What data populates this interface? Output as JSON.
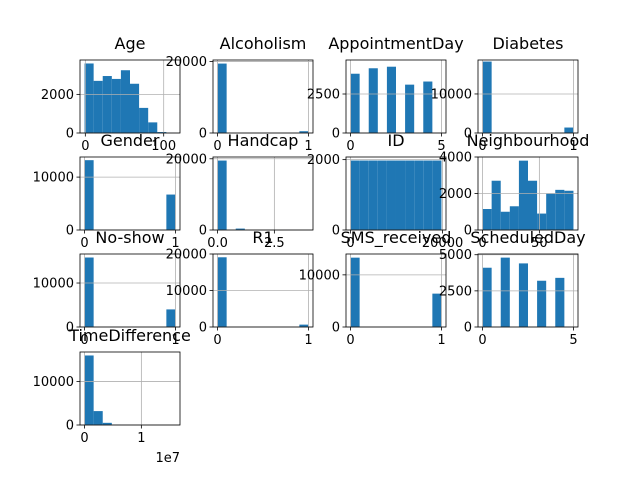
{
  "chart_data": [
    {
      "type": "histogram",
      "title": "Age",
      "bins": [
        -1,
        10.6,
        22.2,
        33.8,
        45.4,
        57,
        68.6,
        80.2,
        91.8,
        103.4,
        115
      ],
      "values": [
        3600,
        2700,
        2950,
        2800,
        3250,
        2550,
        1300,
        550,
        50,
        5
      ],
      "color": "#1f77b4",
      "xlim": [
        -6.8,
        120.8
      ],
      "ylim": [
        0,
        3780
      ],
      "xticks": [
        0,
        100
      ],
      "yticks": [
        0,
        2000
      ],
      "grid": true
    },
    {
      "type": "histogram",
      "title": "Alcoholism",
      "bins": [
        0,
        0.1,
        0.2,
        0.3,
        0.4,
        0.5,
        0.6,
        0.7,
        0.8,
        0.9,
        1
      ],
      "values": [
        19400,
        0,
        0,
        0,
        0,
        0,
        0,
        0,
        0,
        500
      ],
      "color": "#1f77b4",
      "xlim": [
        -0.05,
        1.05
      ],
      "ylim": [
        0,
        20400
      ],
      "xticks": [
        0,
        1
      ],
      "yticks": [
        0,
        20000
      ],
      "grid": true
    },
    {
      "type": "histogram",
      "title": "AppointmentDay",
      "bins": [
        0,
        0.5,
        1,
        1.5,
        2,
        2.5,
        3,
        3.5,
        4,
        4.5,
        5
      ],
      "values": [
        3800,
        0,
        4150,
        0,
        4250,
        0,
        3100,
        0,
        3300,
        7
      ],
      "color": "#1f77b4",
      "xlim": [
        -0.25,
        5.25
      ],
      "ylim": [
        0,
        4680
      ],
      "xticks": [
        0,
        5
      ],
      "yticks": [
        0,
        2500
      ],
      "grid": true
    },
    {
      "type": "histogram",
      "title": "Diabetes",
      "bins": [
        0,
        0.1,
        0.2,
        0.3,
        0.4,
        0.5,
        0.6,
        0.7,
        0.8,
        0.9,
        1
      ],
      "values": [
        18300,
        0,
        0,
        0,
        0,
        0,
        0,
        0,
        0,
        1400
      ],
      "color": "#1f77b4",
      "xlim": [
        -0.05,
        1.05
      ],
      "ylim": [
        0,
        18700
      ],
      "xticks": [
        0,
        1
      ],
      "yticks": [
        0,
        10000
      ],
      "grid": true
    },
    {
      "type": "histogram",
      "title": "Gender",
      "bins": [
        0,
        0.1,
        0.2,
        0.3,
        0.4,
        0.5,
        0.6,
        0.7,
        0.8,
        0.9,
        1
      ],
      "values": [
        13200,
        0,
        0,
        0,
        0,
        0,
        0,
        0,
        0,
        6700
      ],
      "color": "#1f77b4",
      "xlim": [
        -0.05,
        1.05
      ],
      "ylim": [
        0,
        13800
      ],
      "xticks": [
        0,
        1
      ],
      "yticks": [
        0,
        10000
      ],
      "grid": true
    },
    {
      "type": "histogram",
      "title": "Handcap",
      "bins": [
        0,
        0.4,
        0.8,
        1.2,
        1.6,
        2,
        2.4,
        2.8,
        3.2,
        3.6,
        4
      ],
      "values": [
        19500,
        0,
        400,
        0,
        0,
        0,
        0,
        30,
        0,
        3
      ],
      "color": "#1f77b4",
      "xlim": [
        -0.2,
        4.2
      ],
      "ylim": [
        0,
        20500
      ],
      "xticks": [
        {
          "value": 0,
          "label": "0.0"
        },
        {
          "value": 2.5,
          "label": "2.5"
        }
      ],
      "yticks": [
        0,
        20000
      ],
      "grid": true
    },
    {
      "type": "histogram",
      "title": "ID",
      "bins": [
        0,
        1975,
        3950,
        5925,
        7900,
        9875,
        11850,
        13825,
        15800,
        17775,
        19755
      ],
      "values": [
        1975,
        1975,
        1975,
        1975,
        1975,
        1975,
        1975,
        1975,
        1975,
        1975
      ],
      "color": "#1f77b4",
      "xlim": [
        -988,
        20743
      ],
      "ylim": [
        0,
        2075
      ],
      "xticks": [
        0,
        20000
      ],
      "yticks": [
        0,
        2000
      ],
      "grid": true
    },
    {
      "type": "histogram",
      "title": "Neighbourhood",
      "bins": [
        0,
        8,
        16,
        24,
        32,
        40,
        48,
        56,
        64,
        72,
        80
      ],
      "values": [
        1150,
        2700,
        1000,
        1300,
        3800,
        2700,
        900,
        2000,
        2200,
        2150
      ],
      "color": "#1f77b4",
      "xlim": [
        -4,
        84
      ],
      "ylim": [
        0,
        4000
      ],
      "xticks": [
        0,
        50
      ],
      "yticks": [
        0,
        2000,
        4000
      ],
      "grid": true
    },
    {
      "type": "histogram",
      "title": "No-show",
      "bins": [
        0,
        0.1,
        0.2,
        0.3,
        0.4,
        0.5,
        0.6,
        0.7,
        0.8,
        0.9,
        1
      ],
      "values": [
        15800,
        0,
        0,
        0,
        0,
        0,
        0,
        0,
        0,
        4000
      ],
      "color": "#1f77b4",
      "xlim": [
        -0.05,
        1.05
      ],
      "ylim": [
        0,
        16600
      ],
      "xticks": [
        0,
        1
      ],
      "yticks": [
        0,
        10000
      ],
      "grid": true
    },
    {
      "type": "histogram",
      "title": "R1",
      "bins": [
        0,
        0.1,
        0.2,
        0.3,
        0.4,
        0.5,
        0.6,
        0.7,
        0.8,
        0.9,
        1
      ],
      "values": [
        19100,
        0,
        0,
        0,
        0,
        0,
        0,
        0,
        0,
        650
      ],
      "color": "#1f77b4",
      "xlim": [
        -0.05,
        1.05
      ],
      "ylim": [
        0,
        20000
      ],
      "xticks": [
        0,
        1
      ],
      "yticks": [
        0,
        10000,
        20000
      ],
      "grid": true
    },
    {
      "type": "histogram",
      "title": "SMS_received",
      "bins": [
        0,
        0.1,
        0.2,
        0.3,
        0.4,
        0.5,
        0.6,
        0.7,
        0.8,
        0.9,
        1
      ],
      "values": [
        13300,
        0,
        0,
        0,
        0,
        0,
        0,
        0,
        0,
        6400
      ],
      "color": "#1f77b4",
      "xlim": [
        -0.05,
        1.05
      ],
      "ylim": [
        0,
        14000
      ],
      "xticks": [
        0,
        1
      ],
      "yticks": [
        0,
        10000
      ],
      "grid": true
    },
    {
      "type": "histogram",
      "title": "ScheduledDay",
      "bins": [
        0,
        0.5,
        1,
        1.5,
        2,
        2.5,
        3,
        3.5,
        4,
        4.5,
        5
      ],
      "values": [
        4100,
        0,
        4800,
        0,
        4400,
        0,
        3200,
        0,
        3400,
        5
      ],
      "color": "#1f77b4",
      "xlim": [
        -0.25,
        5.25
      ],
      "ylim": [
        0,
        5050
      ],
      "xticks": [
        0,
        5
      ],
      "yticks": [
        0,
        2500,
        5000
      ],
      "grid": true
    },
    {
      "type": "histogram",
      "title": "TimeDifference",
      "bins": [
        0,
        1600000,
        3200000,
        4800000,
        6400000,
        8000000,
        9600000,
        11200000,
        12800000,
        14400000,
        16000000
      ],
      "values": [
        16000,
        3200,
        500,
        80,
        20,
        5,
        2,
        1,
        0,
        1
      ],
      "color": "#1f77b4",
      "xlim": [
        -800000,
        16800000
      ],
      "ylim": [
        0,
        16800
      ],
      "xticks": [
        0,
        {
          "value": 10000000,
          "label": "1"
        }
      ],
      "yticks": [
        0,
        10000
      ],
      "x_offset_label": "1e7",
      "grid": true
    }
  ]
}
